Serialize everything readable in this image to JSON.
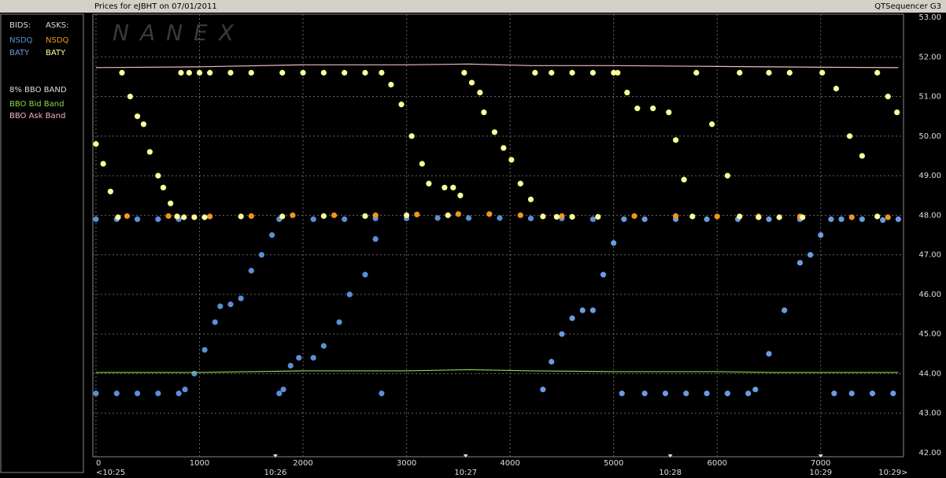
{
  "chart_data": {
    "type": "scatter",
    "title": "Prices for  eJBHT  on  07/01/2011",
    "subtitle": "QTSequencer G3",
    "watermark": "NANEX",
    "legend": {
      "bids_label": "BIDS:",
      "asks_label": "ASKS:",
      "band_title": "8% BBO BAND"
    },
    "xlim": [
      -30,
      7800
    ],
    "ylim": [
      42,
      53
    ],
    "xticks": [
      0,
      1000,
      2000,
      3000,
      4000,
      5000,
      6000,
      7000
    ],
    "yticks": [
      {
        "value": 42,
        "label": "42.00"
      },
      {
        "value": 43,
        "label": "43.00"
      },
      {
        "value": 44,
        "label": "44.00"
      },
      {
        "value": 45,
        "label": "45.00"
      },
      {
        "value": 46,
        "label": "46.00"
      },
      {
        "value": 47,
        "label": "47.00"
      },
      {
        "value": 48,
        "label": "48.00"
      },
      {
        "value": 49,
        "label": "49.00"
      },
      {
        "value": 50,
        "label": "50.00"
      },
      {
        "value": 51,
        "label": "51.00"
      },
      {
        "value": 52,
        "label": "52.00"
      },
      {
        "value": 53,
        "label": "53.00"
      }
    ],
    "time_labels": [
      {
        "value": 0,
        "label": "<10:25"
      },
      {
        "value": 1733,
        "label": "10:26"
      },
      {
        "value": 3571,
        "label": "10:27"
      },
      {
        "value": 5547,
        "label": "10:28"
      },
      {
        "value": 7000,
        "label": "10:29"
      },
      {
        "value": 7700,
        "label": "10:29>"
      }
    ],
    "grid": true,
    "series": [
      {
        "name": "NSDQ",
        "side": "bid",
        "style": "points",
        "color": "#5b8fd6",
        "x": [
          0,
          200,
          400,
          600,
          800,
          0,
          200,
          400,
          600,
          800,
          860,
          950,
          1050,
          1150,
          1200,
          1300,
          1400,
          1500,
          1600,
          1700,
          1770,
          2100,
          2400,
          2700,
          3000,
          3300,
          3600,
          3900,
          4200,
          4500,
          4800,
          1770,
          1810,
          1880,
          1960,
          2100,
          2200,
          2350,
          2450,
          2600,
          2700,
          2759
        ],
        "values": [
          47.9,
          47.9,
          47.9,
          47.9,
          47.9,
          43.5,
          43.5,
          43.5,
          43.5,
          43.5,
          43.6,
          44.0,
          44.6,
          45.3,
          45.7,
          45.75,
          45.9,
          46.6,
          47.0,
          47.5,
          47.9,
          47.9,
          47.9,
          47.92,
          47.92,
          47.93,
          47.93,
          47.93,
          47.92,
          47.92,
          47.9,
          43.5,
          43.6,
          44.2,
          44.4,
          44.4,
          44.7,
          45.3,
          46.0,
          46.5,
          47.4,
          43.5
        ]
      },
      {
        "name": "BATY",
        "side": "bid",
        "style": "points",
        "color": "#6b9be0",
        "x": [
          4317,
          4400,
          4500,
          4600,
          4700,
          4800,
          4900,
          5000,
          5100,
          5300,
          5600,
          5900,
          6200,
          6500,
          6800,
          5080,
          5300,
          5500,
          5700,
          5900,
          6100,
          6300,
          6369,
          6500,
          6650,
          6800,
          6900,
          7000,
          7100,
          7200,
          7400,
          7600,
          7750,
          7130,
          7300,
          7500,
          7700
        ],
        "values": [
          43.6,
          44.3,
          45.0,
          45.4,
          45.6,
          45.6,
          46.5,
          47.3,
          47.9,
          47.9,
          47.9,
          47.9,
          47.9,
          47.9,
          47.9,
          43.5,
          43.5,
          43.5,
          43.5,
          43.5,
          43.5,
          43.5,
          43.6,
          44.5,
          45.6,
          46.8,
          47.0,
          47.5,
          47.9,
          47.9,
          47.9,
          47.88,
          47.9,
          43.5,
          43.5,
          43.5,
          43.5
        ]
      },
      {
        "name": "NSDQ",
        "side": "ask",
        "style": "points",
        "color": "#f0961e",
        "x": [
          300,
          700,
          1100,
          1500,
          1900,
          2300,
          2700,
          3100,
          3500,
          3800,
          4100,
          4500,
          5200,
          5600,
          6000,
          6400,
          6800,
          7300,
          7650
        ],
        "values": [
          47.98,
          47.98,
          47.97,
          47.98,
          48.0,
          48.0,
          48.0,
          48.02,
          48.03,
          48.03,
          48.0,
          47.98,
          47.98,
          47.98,
          47.97,
          47.97,
          47.97,
          47.95,
          47.95
        ]
      },
      {
        "name": "BATY",
        "side": "ask",
        "style": "points",
        "color": "#ffff99",
        "x": [
          0,
          70,
          140,
          213,
          251,
          330,
          400,
          460,
          520,
          600,
          650,
          720,
          783,
          850,
          950,
          1049,
          821,
          900,
          1000,
          1100,
          1300,
          1500,
          1800,
          2000,
          2200,
          2400,
          2600,
          1400,
          1800,
          2200,
          2600,
          3000,
          3400,
          2759,
          2850,
          2950,
          3050,
          3150,
          3215,
          3367,
          3450,
          3519,
          3557,
          3630,
          3709,
          3747,
          3850,
          3937,
          4013,
          4100,
          4200,
          4317,
          4450,
          4600,
          4849,
          4241,
          4400,
          4600,
          4800,
          5001,
          5039,
          5130,
          5229,
          5380,
          5533,
          5600,
          5680,
          5761,
          5799,
          5950,
          6100,
          6217,
          6400,
          6600,
          6825,
          6217,
          6500,
          6700,
          7015,
          7150,
          7280,
          7400,
          7547,
          7547,
          7650,
          7737
        ],
        "values": [
          49.8,
          49.3,
          48.6,
          47.95,
          51.6,
          51.0,
          50.5,
          50.3,
          49.6,
          49.0,
          48.7,
          48.3,
          47.97,
          47.95,
          47.95,
          47.95,
          51.6,
          51.6,
          51.6,
          51.6,
          51.6,
          51.6,
          51.6,
          51.6,
          51.6,
          51.6,
          51.6,
          47.97,
          47.97,
          47.98,
          47.98,
          48.0,
          48.0,
          51.6,
          51.3,
          50.8,
          50.0,
          49.3,
          48.8,
          48.7,
          48.7,
          48.5,
          51.6,
          51.35,
          51.1,
          50.6,
          50.1,
          49.7,
          49.4,
          48.8,
          48.4,
          47.97,
          47.96,
          47.96,
          47.96,
          51.6,
          51.6,
          51.6,
          51.6,
          51.6,
          51.6,
          51.1,
          50.7,
          50.7,
          50.6,
          49.9,
          48.9,
          47.97,
          51.6,
          50.3,
          49.0,
          47.97,
          47.95,
          47.95,
          47.95,
          51.6,
          51.6,
          51.6,
          51.6,
          51.2,
          50.0,
          49.5,
          47.97,
          51.6,
          51.0,
          50.6
        ]
      },
      {
        "name": "BBO Bid Band",
        "side": "band",
        "style": "line",
        "color": "#8cd84a",
        "x": [
          0,
          1000,
          2000,
          3000,
          3600,
          4200,
          5000,
          6000,
          6500,
          7000,
          7750
        ],
        "values": [
          44.03,
          44.03,
          44.07,
          44.07,
          44.1,
          44.07,
          44.05,
          44.05,
          44.03,
          44.03,
          44.03
        ]
      },
      {
        "name": "BBO Ask Band",
        "side": "band",
        "style": "line",
        "color": "#f2b8c0",
        "x": [
          0,
          1000,
          2000,
          3000,
          3600,
          4200,
          5000,
          6000,
          6500,
          7000,
          7750
        ],
        "values": [
          51.73,
          51.75,
          51.8,
          51.8,
          51.82,
          51.78,
          51.78,
          51.76,
          51.75,
          51.74,
          51.73
        ]
      }
    ]
  }
}
